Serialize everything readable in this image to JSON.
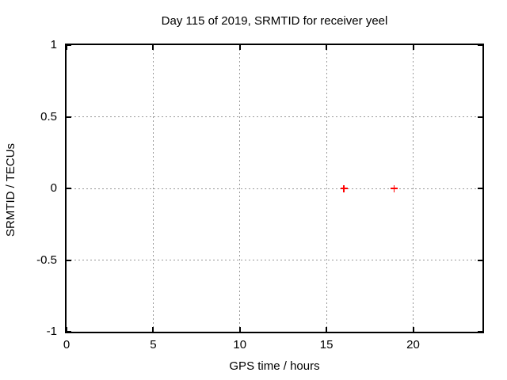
{
  "chart_data": {
    "type": "scatter",
    "title": "Day 115 of 2019, SRMTID for receiver yeel",
    "xlabel": "GPS time / hours",
    "ylabel": "SRMTID / TECUs",
    "xlim": [
      0,
      24
    ],
    "ylim": [
      -1,
      1
    ],
    "xticks": [
      0,
      5,
      10,
      15,
      20
    ],
    "xtick_labels": [
      "0",
      "5",
      "10",
      "15",
      "20"
    ],
    "yticks": [
      1,
      0.5,
      0,
      -0.5,
      -1
    ],
    "ytick_labels": [
      "1",
      "0.5",
      "0",
      "-0.5",
      "-1"
    ],
    "grid": true,
    "grid_style": "dotted",
    "legend": "none",
    "series": [
      {
        "name": "SRMTID",
        "marker": "plus",
        "color": "#ff0000",
        "points": [
          {
            "x": 16.0,
            "y": 0.0
          },
          {
            "x": 18.9,
            "y": 0.0
          }
        ]
      }
    ],
    "colors": {
      "background": "#ffffff",
      "border": "#000000",
      "grid": "#999999",
      "text": "#000000"
    }
  }
}
